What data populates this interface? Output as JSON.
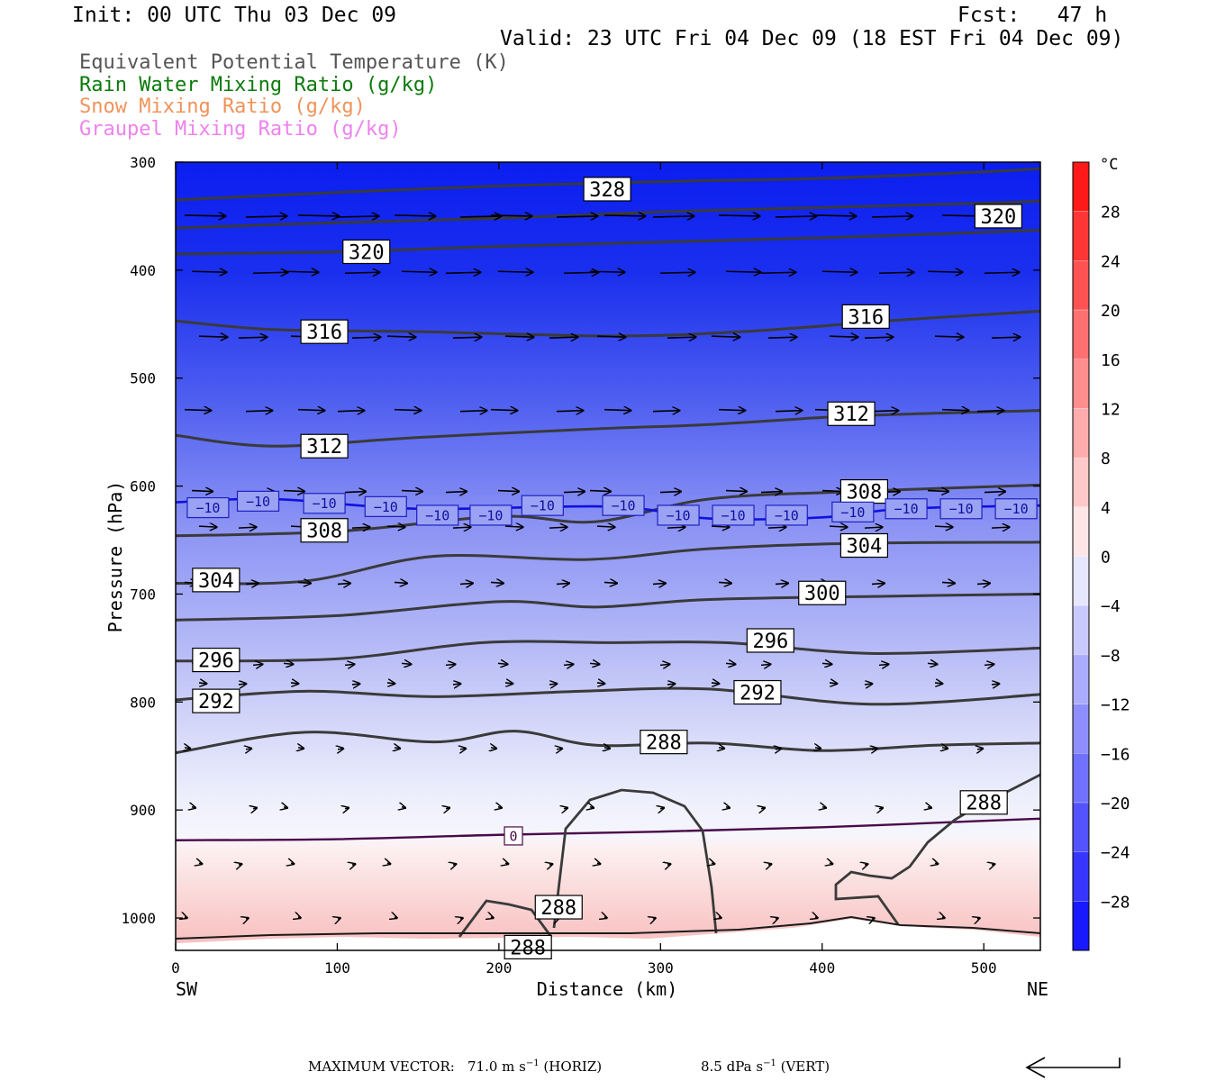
{
  "header": {
    "init": "Init: 00 UTC Thu 03 Dec 09",
    "fcst": "Fcst:   47 h",
    "valid": "Valid: 23 UTC Fri 04 Dec 09 (18 EST Fri 04 Dec 09)"
  },
  "fields": [
    {
      "label": "Equivalent Potential Temperature (K)",
      "color": "#555555"
    },
    {
      "label": "Rain Water Mixing Ratio (g/kg)",
      "color": "#0b7a0b"
    },
    {
      "label": "Snow Mixing Ratio (g/kg)",
      "color": "#f0935a"
    },
    {
      "label": "Graupel Mixing Ratio (g/kg)",
      "color": "#ee82ee"
    }
  ],
  "chart_data": {
    "type": "cross-section",
    "ylabel": "Pressure (hPa)",
    "xlabel": "Distance (km)",
    "x_left_label": "SW",
    "x_right_label": "NE",
    "xlim": [
      0,
      535
    ],
    "ylim": [
      300,
      1030
    ],
    "x_ticks": [
      0,
      100,
      200,
      300,
      400,
      500
    ],
    "y_ticks": [
      300,
      400,
      500,
      600,
      700,
      800,
      900,
      1000
    ],
    "colorbar": {
      "unit": "°C",
      "tick_labels": [
        "28",
        "24",
        "20",
        "16",
        "12",
        "8",
        "4",
        "0",
        "−4",
        "−8",
        "−12",
        "−16",
        "−20",
        "−24",
        "−28"
      ],
      "range": [
        -32,
        32
      ]
    },
    "theta_e_contours": [
      {
        "value": 328,
        "x": [
          0,
          100,
          200,
          300,
          400,
          500,
          535
        ],
        "p": [
          335,
          328,
          322,
          318,
          315,
          309,
          306
        ]
      },
      {
        "value": 324,
        "x": [
          0,
          100,
          200,
          300,
          400,
          500,
          535
        ],
        "p": [
          361,
          356,
          352,
          346,
          342,
          338,
          336
        ]
      },
      {
        "value": 320,
        "x": [
          0,
          100,
          200,
          300,
          400,
          500,
          535
        ],
        "p": [
          385,
          383,
          378,
          374,
          370,
          365,
          363
        ]
      },
      {
        "value": 316,
        "x": [
          0,
          60,
          150,
          270,
          350,
          450,
          535
        ],
        "p": [
          447,
          455,
          457,
          461,
          457,
          446,
          438
        ]
      },
      {
        "value": 312,
        "x": [
          0,
          60,
          150,
          260,
          330,
          420,
          535
        ],
        "p": [
          553,
          563,
          555,
          547,
          543,
          535,
          530
        ]
      },
      {
        "value": 308,
        "x": [
          0,
          100,
          200,
          260,
          330,
          420,
          535
        ],
        "p": [
          646,
          642,
          628,
          633,
          612,
          605,
          599
        ]
      },
      {
        "value": 304,
        "x": [
          0,
          80,
          160,
          255,
          330,
          420,
          535
        ],
        "p": [
          690,
          688,
          665,
          668,
          658,
          653,
          652
        ]
      },
      {
        "value": 300,
        "x": [
          0,
          100,
          200,
          260,
          330,
          440,
          535
        ],
        "p": [
          724,
          720,
          707,
          712,
          705,
          702,
          700
        ]
      },
      {
        "value": 296,
        "x": [
          0,
          100,
          190,
          270,
          340,
          430,
          535
        ],
        "p": [
          762,
          760,
          745,
          745,
          745,
          755,
          750
        ]
      },
      {
        "value": 292,
        "x": [
          0,
          80,
          160,
          250,
          330,
          430,
          535
        ],
        "p": [
          798,
          790,
          795,
          790,
          788,
          802,
          793
        ]
      },
      {
        "value": 288,
        "x": [
          0,
          80,
          160,
          210,
          260,
          330,
          400,
          470,
          535
        ],
        "p": [
          847,
          828,
          837,
          827,
          840,
          838,
          845,
          840,
          838
        ]
      }
    ],
    "temperature_contours": [
      {
        "value": -10,
        "x": [
          0,
          60,
          150,
          270,
          330,
          400,
          450,
          535
        ],
        "p": [
          615,
          612,
          621,
          619,
          630,
          629,
          621,
          618
        ]
      },
      {
        "value": 0,
        "x": [
          0,
          100,
          200,
          300,
          400,
          500,
          535
        ],
        "p": [
          928,
          927,
          923,
          920,
          916,
          910,
          908
        ]
      }
    ],
    "contour_labels": [
      {
        "text": "328",
        "x": 267,
        "p": 325
      },
      {
        "text": "320",
        "x": 509,
        "p": 350
      },
      {
        "text": "320",
        "x": 118,
        "p": 383
      },
      {
        "text": "316",
        "x": 92,
        "p": 457
      },
      {
        "text": "316",
        "x": 427,
        "p": 443
      },
      {
        "text": "312",
        "x": 92,
        "p": 563
      },
      {
        "text": "312",
        "x": 418,
        "p": 533
      },
      {
        "text": "308",
        "x": 92,
        "p": 641
      },
      {
        "text": "308",
        "x": 426,
        "p": 605
      },
      {
        "text": "304",
        "x": 25,
        "p": 687
      },
      {
        "text": "304",
        "x": 426,
        "p": 655
      },
      {
        "text": "300",
        "x": 400,
        "p": 699
      },
      {
        "text": "296",
        "x": 25,
        "p": 761
      },
      {
        "text": "296",
        "x": 368,
        "p": 743
      },
      {
        "text": "292",
        "x": 25,
        "p": 799
      },
      {
        "text": "292",
        "x": 360,
        "p": 791
      },
      {
        "text": "288",
        "x": 302,
        "p": 837
      },
      {
        "text": "288",
        "x": 500,
        "p": 893
      },
      {
        "text": "288",
        "x": 237,
        "p": 990
      },
      {
        "text": "288",
        "x": 218,
        "p": 1027
      },
      {
        "text": "0",
        "x": 209,
        "p": 924
      },
      {
        "text": "−10",
        "x": 20,
        "p": 620
      },
      {
        "text": "−10",
        "x": 51,
        "p": 614
      },
      {
        "text": "−10",
        "x": 92,
        "p": 616
      },
      {
        "text": "−10",
        "x": 130,
        "p": 619
      },
      {
        "text": "−10",
        "x": 162,
        "p": 627
      },
      {
        "text": "−10",
        "x": 195,
        "p": 627
      },
      {
        "text": "−10",
        "x": 227,
        "p": 618
      },
      {
        "text": "−10",
        "x": 277,
        "p": 618
      },
      {
        "text": "−10",
        "x": 311,
        "p": 627
      },
      {
        "text": "−10",
        "x": 345,
        "p": 627
      },
      {
        "text": "−10",
        "x": 378,
        "p": 627
      },
      {
        "text": "−10",
        "x": 419,
        "p": 624
      },
      {
        "text": "−10",
        "x": 452,
        "p": 621
      },
      {
        "text": "−10",
        "x": 486,
        "p": 621
      },
      {
        "text": "−10",
        "x": 520,
        "p": 621
      }
    ],
    "wind_rows": [
      {
        "p": 350,
        "len": 0.65
      },
      {
        "p": 402,
        "len": 0.55
      },
      {
        "p": 462,
        "len": 0.45
      },
      {
        "p": 530,
        "len": 0.42
      },
      {
        "p": 605,
        "len": 0.33
      },
      {
        "p": 638,
        "len": 0.28
      },
      {
        "p": 690,
        "len": 0.2
      },
      {
        "p": 765,
        "len": 0.15
      },
      {
        "p": 783,
        "len": 0.12
      },
      {
        "p": 843,
        "len": 0.09
      },
      {
        "p": 898,
        "len": 0.06
      },
      {
        "p": 950,
        "len": 0.05
      },
      {
        "p": 1000,
        "len": 0.04
      }
    ],
    "max_vector": {
      "label": "MAXIMUM VECTOR:",
      "horiz": "71.0 m s",
      "horiz_unit": "(HORIZ)",
      "vert": "8.5 dPa s",
      "vert_unit": "(VERT)",
      "exp": "−1"
    }
  }
}
